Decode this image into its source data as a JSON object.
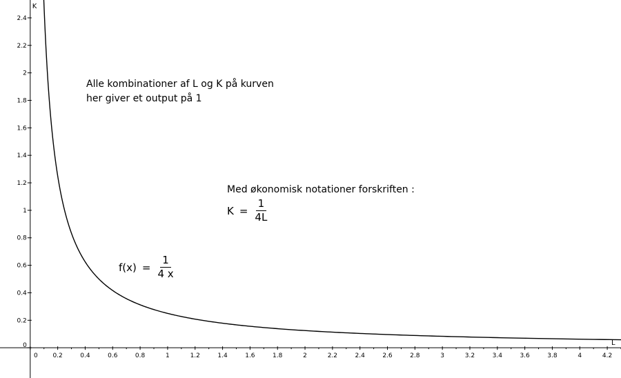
{
  "chart_data": {
    "type": "line",
    "title": "",
    "xlabel": "L",
    "ylabel": "K",
    "xlim": [
      -0.22,
      4.3
    ],
    "ylim": [
      -0.22,
      2.53
    ],
    "x_ticks": [
      0,
      0.2,
      0.4,
      0.6,
      0.8,
      1,
      1.2,
      1.4,
      1.6,
      1.8,
      2,
      2.2,
      2.4,
      2.6,
      2.8,
      3,
      3.2,
      3.4,
      3.6,
      3.8,
      4,
      4.2
    ],
    "x_tick_labels": [
      "0",
      "0.2",
      "0.4",
      "0.6",
      "0.8",
      "1",
      "1.2",
      "1.4",
      "1.6",
      "1.8",
      "2",
      "2.2",
      "2.4",
      "2.6",
      "2.8",
      "3",
      "3.2",
      "3.4",
      "3.6",
      "3.8",
      "4",
      "4.2"
    ],
    "y_ticks": [
      0,
      0.2,
      0.4,
      0.6,
      0.8,
      1,
      1.2,
      1.4,
      1.6,
      1.8,
      2,
      2.2,
      2.4
    ],
    "y_tick_labels": [
      "0",
      "0.2",
      "0.4",
      "0.6",
      "0.8",
      "1",
      "1.2",
      "1.4",
      "1.6",
      "1.8",
      "2",
      "2.2",
      "2.4"
    ],
    "grid": false,
    "series": [
      {
        "x": [
          0.1,
          0.125,
          0.15,
          0.2,
          0.25,
          0.3,
          0.4,
          0.5,
          0.6,
          0.8,
          1,
          1.2,
          1.5,
          2,
          2.5,
          3,
          3.5,
          4,
          4.3
        ],
        "y": [
          2.5,
          2,
          1.667,
          1.25,
          1,
          0.833,
          0.625,
          0.5,
          0.417,
          0.3125,
          0.25,
          0.208,
          0.167,
          0.125,
          0.1,
          0.083,
          0.071,
          0.0625,
          0.058
        ],
        "color": "#000000"
      }
    ]
  },
  "annotations": {
    "note_line1": "Alle kombinationer af L og K på kurven",
    "note_line2": "her giver et output på 1",
    "notation_line": "Med økonomisk notationer forskriften :",
    "k_formula_lhs": "K",
    "k_formula_eq": "=",
    "k_formula_num": "1",
    "k_formula_den": "4L",
    "f_formula_lhs": "f(x)",
    "f_formula_eq": "=",
    "f_formula_num": "1",
    "f_formula_den": "4 x"
  }
}
